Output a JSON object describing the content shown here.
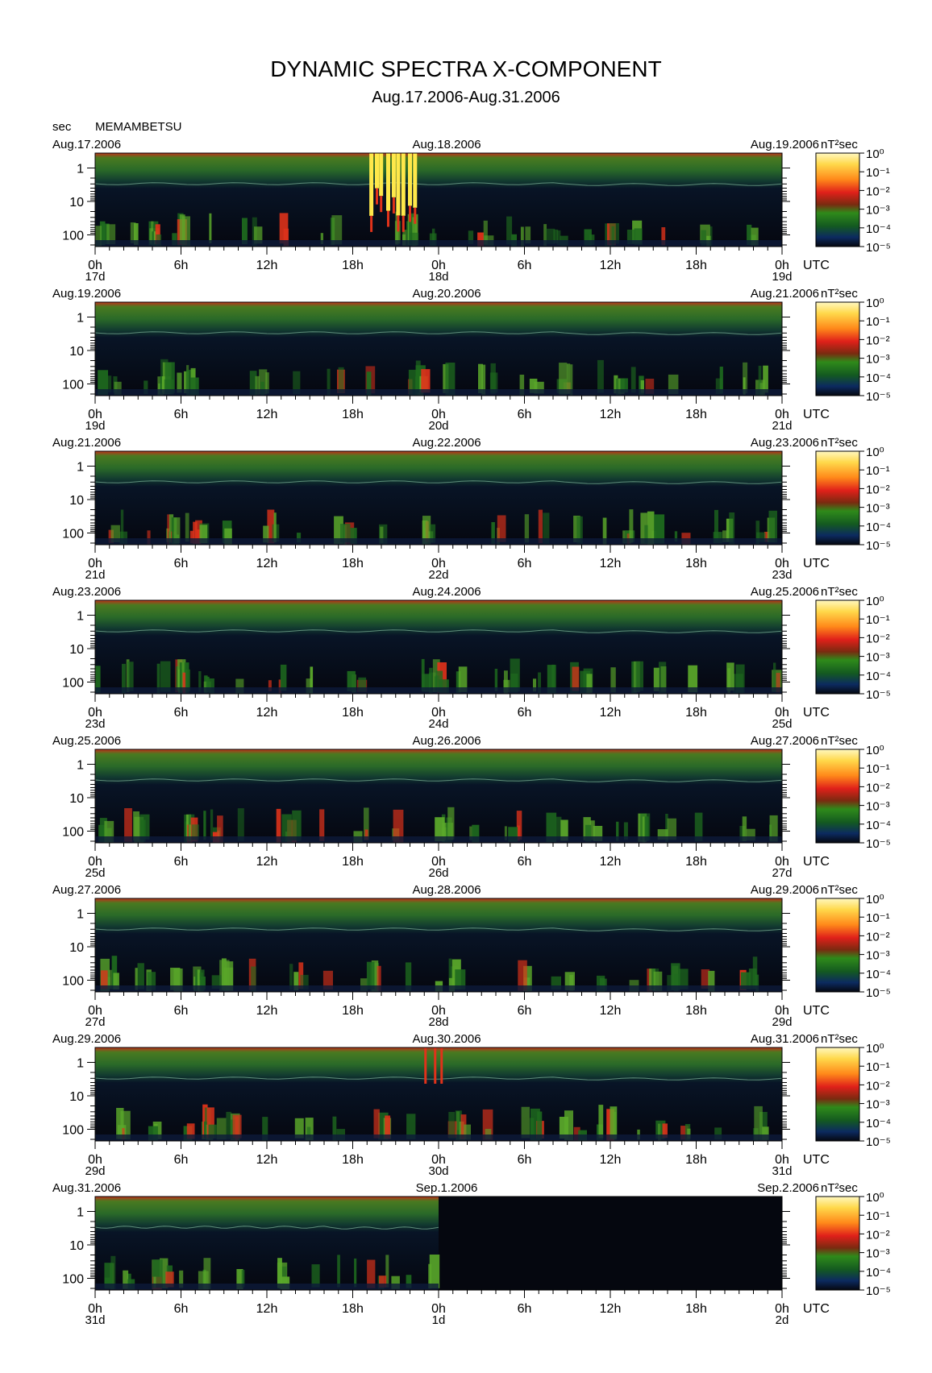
{
  "title": "DYNAMIC SPECTRA X-COMPONENT",
  "subtitle": "Aug.17.2006-Aug.31.2006",
  "unit_label": "sec",
  "station": "MEMAMBETSU",
  "colorbar_unit": "nT²sec",
  "colorbar_ticks": [
    "10⁰",
    "10⁻¹",
    "10⁻²",
    "10⁻³",
    "10⁻⁴",
    "10⁻⁵"
  ],
  "colors": {
    "background": "#05070f",
    "noise_floor": "#0d1a3a",
    "low": "#1e6a1e",
    "mid": "#5aa82a",
    "high": "#e0321a",
    "max": "#ffe84a"
  },
  "chart_data": {
    "type": "heatmap",
    "y_axis": {
      "label": "sec",
      "ticks": [
        "1",
        "10",
        "100"
      ],
      "scale": "log"
    },
    "x_axis": {
      "label": "UTC",
      "ticks": [
        "0h",
        "6h",
        "12h",
        "18h",
        "0h",
        "6h",
        "12h",
        "18h",
        "0h"
      ]
    },
    "colorbar": {
      "label": "nT²sec",
      "range": [
        "10⁻⁵",
        "10⁰"
      ],
      "scale": "log"
    },
    "panels": [
      {
        "date_left": "Aug.17.2006",
        "date_mid": "Aug.18.2006",
        "date_right": "Aug.19.2006",
        "day_labels": [
          "17d",
          "18d",
          "19d"
        ],
        "activity": "strong burst Aug.17 19h-23h",
        "data_coverage": 1.0
      },
      {
        "date_left": "Aug.19.2006",
        "date_mid": "Aug.20.2006",
        "date_right": "Aug.21.2006",
        "day_labels": [
          "19d",
          "20d",
          "21d"
        ],
        "activity": "moderate activity Aug.19 12h - Aug.20 6h",
        "data_coverage": 1.0
      },
      {
        "date_left": "Aug.21.2006",
        "date_mid": "Aug.22.2006",
        "date_right": "Aug.23.2006",
        "day_labels": [
          "21d",
          "22d",
          "23d"
        ],
        "activity": "scattered activity",
        "data_coverage": 1.0
      },
      {
        "date_left": "Aug.23.2006",
        "date_mid": "Aug.24.2006",
        "date_right": "Aug.25.2006",
        "day_labels": [
          "23d",
          "24d",
          "25d"
        ],
        "activity": "quiet, peaks near Aug.24 15h-17h",
        "data_coverage": 1.0
      },
      {
        "date_left": "Aug.25.2006",
        "date_mid": "Aug.26.2006",
        "date_right": "Aug.27.2006",
        "day_labels": [
          "25d",
          "26d",
          "27d"
        ],
        "activity": "quiet",
        "data_coverage": 1.0
      },
      {
        "date_left": "Aug.27.2006",
        "date_mid": "Aug.28.2006",
        "date_right": "Aug.29.2006",
        "day_labels": [
          "27d",
          "28d",
          "29d"
        ],
        "activity": "broad activity Aug.27 18h - Aug.28 24h",
        "data_coverage": 1.0
      },
      {
        "date_left": "Aug.29.2006",
        "date_mid": "Aug.30.2006",
        "date_right": "Aug.31.2006",
        "day_labels": [
          "29d",
          "30d",
          "31d"
        ],
        "activity": "strong activity Aug.30 3h-11h",
        "data_coverage": 1.0
      },
      {
        "date_left": "Aug.31.2006",
        "date_mid": "Sep.1.2006",
        "date_right": "Sep.2.2006",
        "day_labels": [
          "31d",
          "1d",
          "2d"
        ],
        "activity": "data ends Sep.1 0h",
        "data_coverage": 0.5
      }
    ]
  }
}
